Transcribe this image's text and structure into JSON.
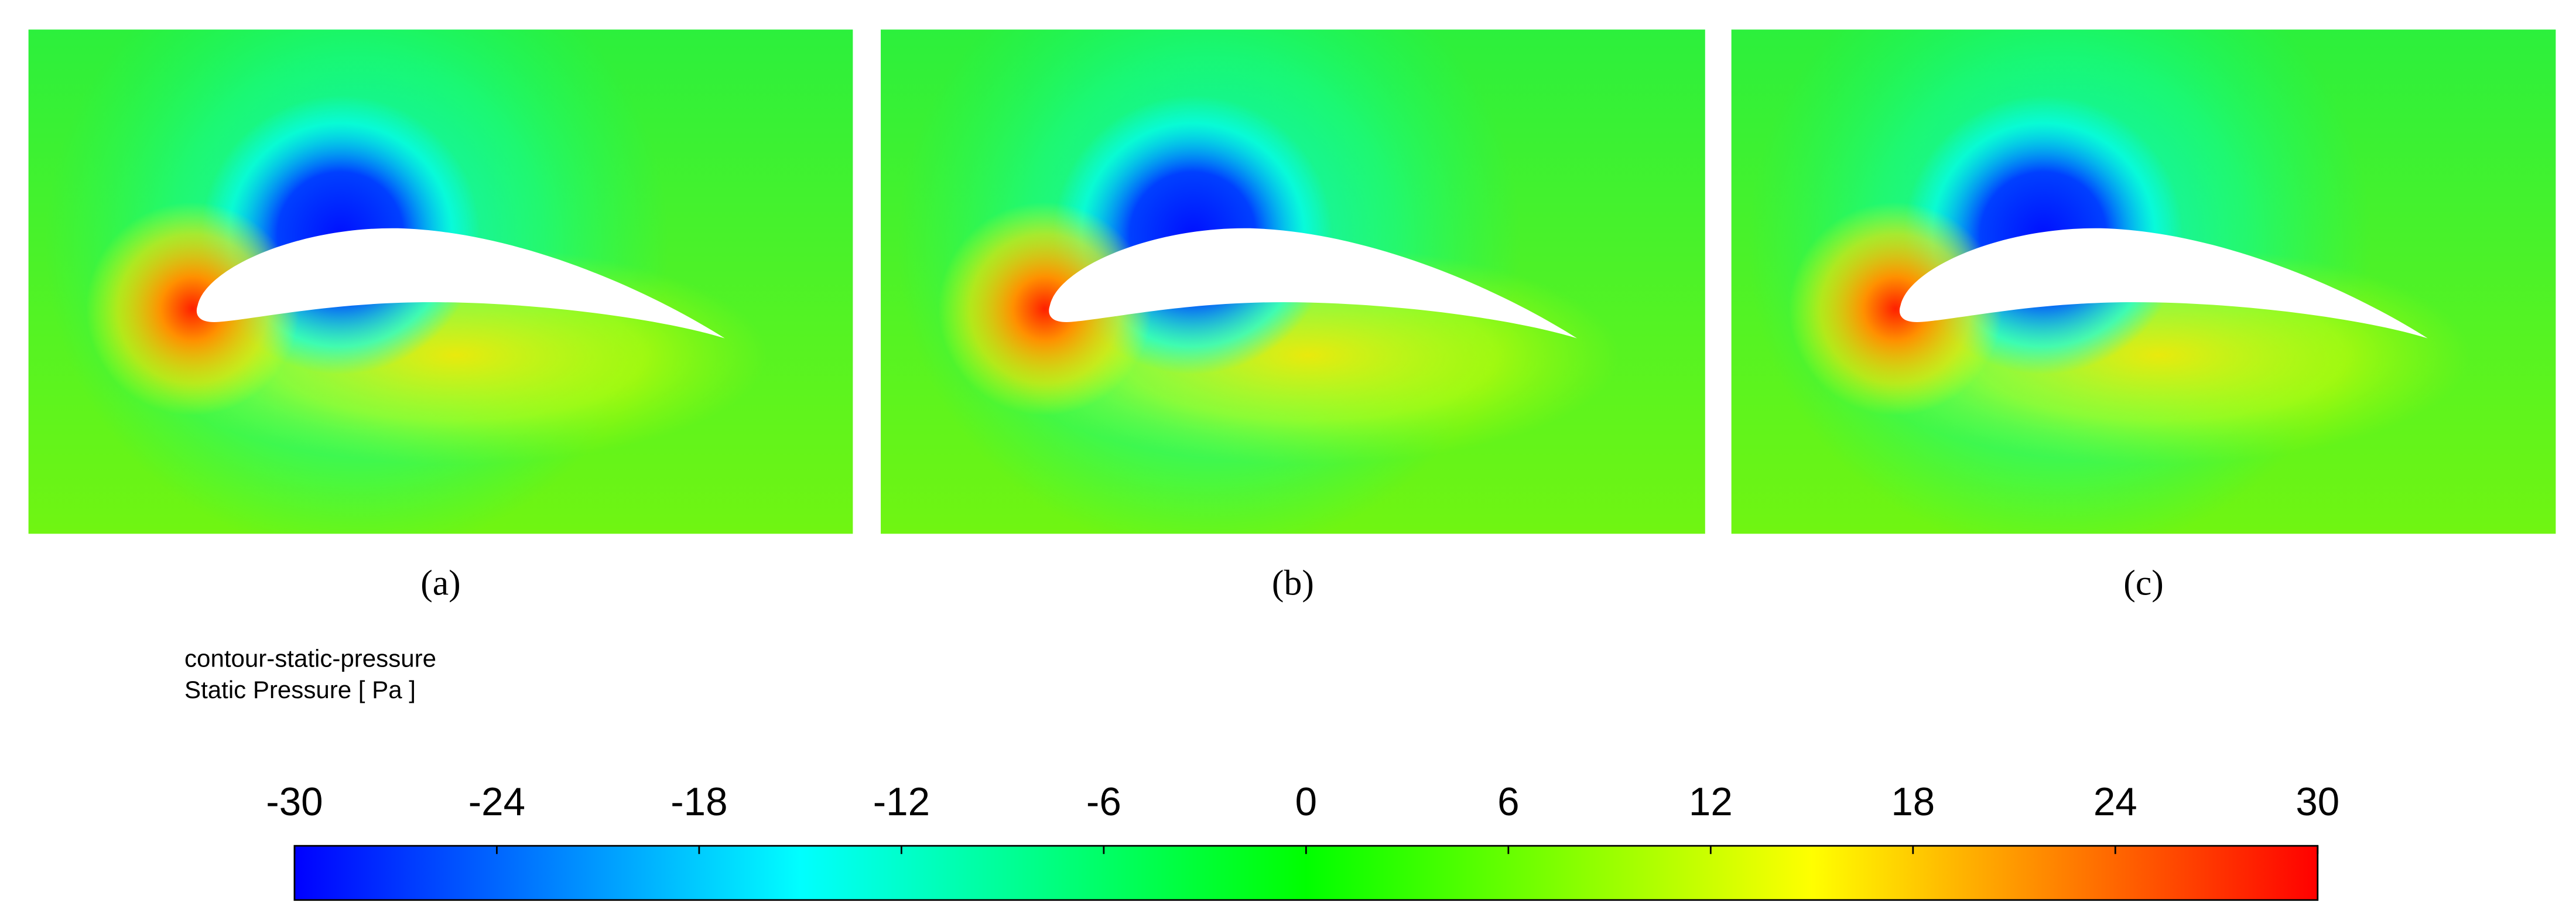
{
  "panels": [
    {
      "label": "(a)"
    },
    {
      "label": "(b)"
    },
    {
      "label": "(c)"
    }
  ],
  "colorbar": {
    "title": "contour-static-pressure",
    "label": "Static Pressure [ Pa ]",
    "lim": [
      -30,
      30
    ],
    "ticks": [
      -30,
      -24,
      -18,
      -12,
      -6,
      0,
      6,
      12,
      18,
      24,
      30
    ],
    "colors": [
      "#0000ff",
      "#00ffff",
      "#00ff00",
      "#ffff00",
      "#ff0000"
    ]
  }
}
